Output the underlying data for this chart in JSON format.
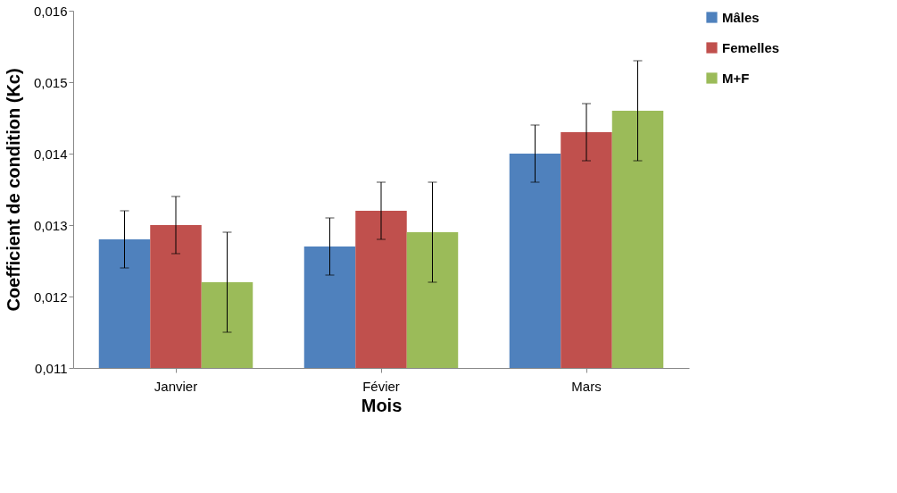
{
  "chart_data": {
    "type": "bar",
    "xlabel": "Mois",
    "ylabel": "Coefficient de condition (Kc)",
    "categories": [
      "Janvier",
      "Févier",
      "Mars"
    ],
    "series": [
      {
        "name": "Mâles",
        "color": "#4f81bd",
        "values": [
          0.0128,
          0.0127,
          0.014
        ],
        "errors": [
          0.0004,
          0.0004,
          0.0004
        ]
      },
      {
        "name": "Femelles",
        "color": "#c0504d",
        "values": [
          0.013,
          0.0132,
          0.0143
        ],
        "errors": [
          0.0004,
          0.0004,
          0.0004
        ]
      },
      {
        "name": "M+F",
        "color": "#9bbb59",
        "values": [
          0.0122,
          0.0129,
          0.0146
        ],
        "errors": [
          0.0007,
          0.0007,
          0.0007
        ]
      }
    ],
    "ylim": [
      0.011,
      0.016
    ],
    "yticks": [
      {
        "value": 0.011,
        "label": "0,011"
      },
      {
        "value": 0.012,
        "label": "0,012"
      },
      {
        "value": 0.013,
        "label": "0,013"
      },
      {
        "value": 0.014,
        "label": "0,014"
      },
      {
        "value": 0.015,
        "label": "0,015"
      },
      {
        "value": 0.016,
        "label": "0,016"
      }
    ],
    "grid": false,
    "legend": "right"
  }
}
